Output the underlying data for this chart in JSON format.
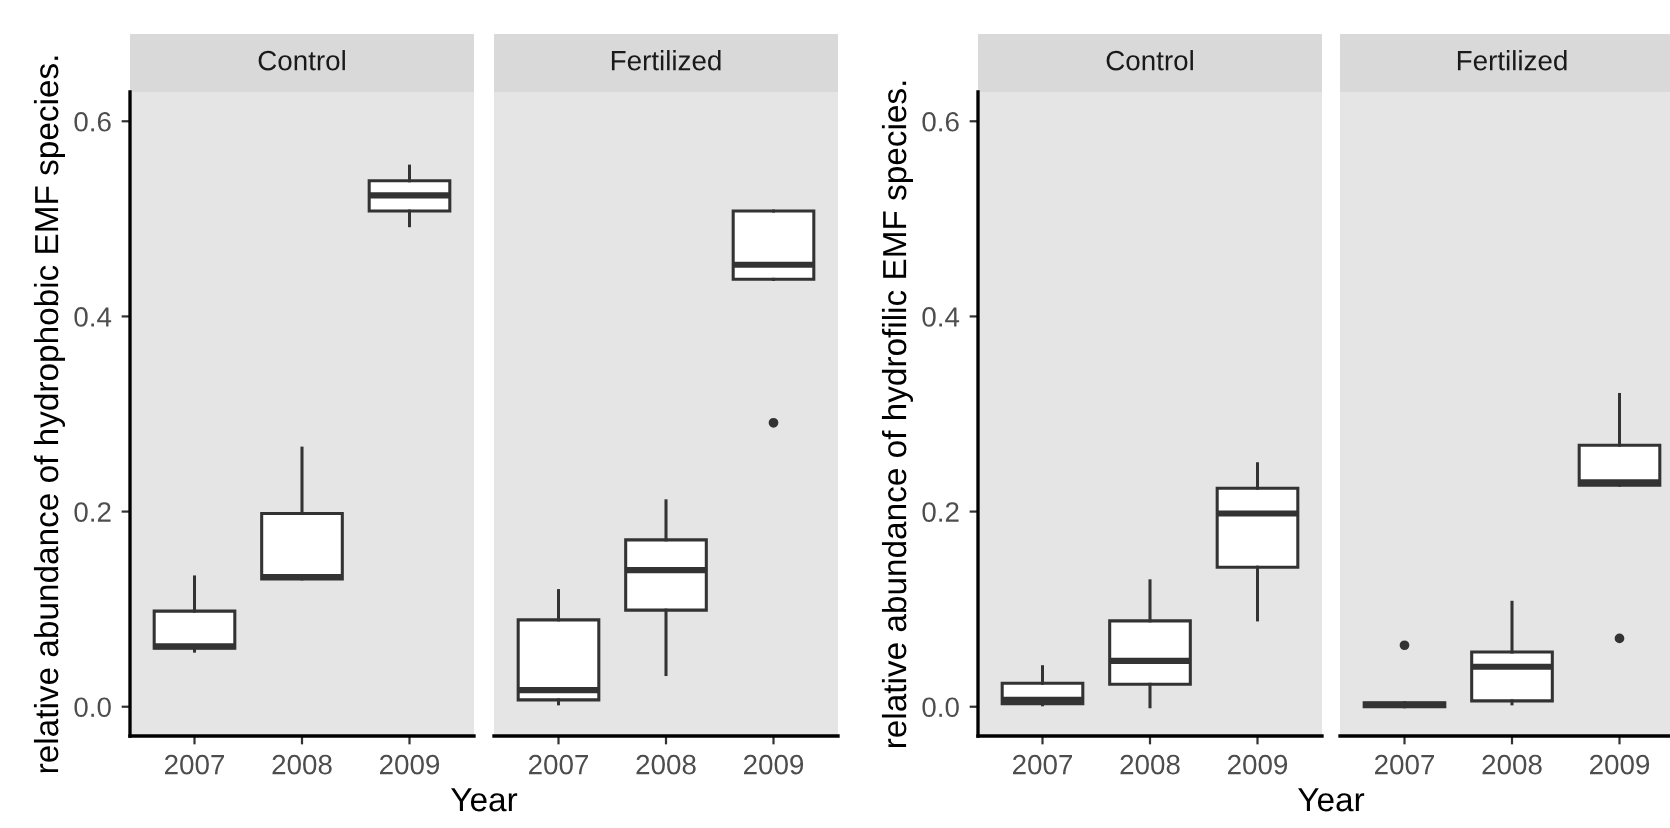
{
  "chart_data": [
    {
      "type": "box",
      "title": "Control",
      "ylabel": "relative abundance of hydrophobic EMF species.",
      "xlabel": "Year",
      "categories": [
        "2007",
        "2008",
        "2009"
      ],
      "ylim": [
        -0.03,
        0.63
      ],
      "yticks": [
        {
          "value": 0,
          "label": "0.0"
        },
        {
          "value": 0.2,
          "label": "0.2"
        },
        {
          "value": 0.4,
          "label": "0.4"
        },
        {
          "value": 0.6,
          "label": "0.6"
        }
      ],
      "grid": false,
      "boxes": [
        {
          "low": 0.057,
          "q1": 0.06,
          "median": 0.062,
          "q3": 0.098,
          "high": 0.133
        },
        {
          "low": 0.131,
          "q1": 0.131,
          "median": 0.133,
          "q3": 0.198,
          "high": 0.265
        },
        {
          "low": 0.493,
          "q1": 0.508,
          "median": 0.524,
          "q3": 0.539,
          "high": 0.554
        }
      ]
    },
    {
      "type": "box",
      "title": "Fertilized",
      "categories": [
        "2007",
        "2008",
        "2009"
      ],
      "ylim": [
        -0.03,
        0.63
      ],
      "tick_labels": "x",
      "grid": false,
      "boxes": [
        {
          "low": 0.003,
          "q1": 0.007,
          "median": 0.017,
          "q3": 0.089,
          "high": 0.119
        },
        {
          "low": 0.033,
          "q1": 0.099,
          "median": 0.14,
          "q3": 0.171,
          "high": 0.211
        },
        {
          "low": 0.438,
          "q1": 0.438,
          "median": 0.453,
          "q3": 0.508,
          "high": 0.508,
          "outliers": [
            0.291
          ]
        }
      ]
    },
    {
      "type": "box",
      "title": "Control",
      "ylabel": "relative abundance of hydrofilic EMF species.",
      "xlabel": "Year",
      "categories": [
        "2007",
        "2008",
        "2009"
      ],
      "ylim": [
        -0.03,
        0.63
      ],
      "yticks": [
        {
          "value": 0,
          "label": "0.0"
        },
        {
          "value": 0.2,
          "label": "0.2"
        },
        {
          "value": 0.4,
          "label": "0.4"
        },
        {
          "value": 0.6,
          "label": "0.6"
        }
      ],
      "grid": false,
      "boxes": [
        {
          "low": 0.002,
          "q1": 0.003,
          "median": 0.007,
          "q3": 0.024,
          "high": 0.041
        },
        {
          "low": 0.0,
          "q1": 0.023,
          "median": 0.047,
          "q3": 0.088,
          "high": 0.129
        },
        {
          "low": 0.089,
          "q1": 0.143,
          "median": 0.198,
          "q3": 0.224,
          "high": 0.249
        }
      ]
    },
    {
      "type": "box",
      "title": "Fertilized",
      "categories": [
        "2007",
        "2008",
        "2009"
      ],
      "ylim": [
        -0.03,
        0.63
      ],
      "tick_labels": "x",
      "grid": false,
      "boxes": [
        {
          "low": 0.0,
          "q1": 0.0,
          "median": 0.002,
          "q3": 0.004,
          "high": 0.004,
          "outliers": [
            0.063
          ]
        },
        {
          "low": 0.003,
          "q1": 0.006,
          "median": 0.041,
          "q3": 0.056,
          "high": 0.107
        },
        {
          "low": 0.227,
          "q1": 0.227,
          "median": 0.23,
          "q3": 0.268,
          "high": 0.32,
          "outliers": [
            0.07
          ]
        }
      ]
    }
  ]
}
